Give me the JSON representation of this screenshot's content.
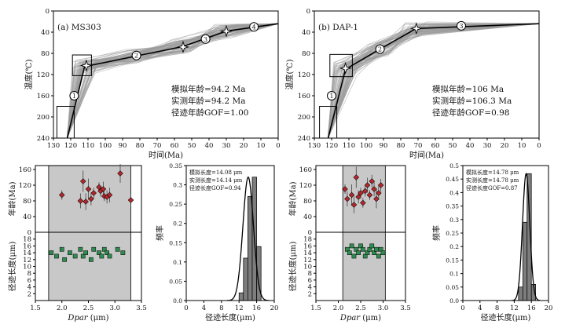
{
  "chart_data": [
    {
      "panel": "a-thermal",
      "type": "line",
      "title": "(a) MS303",
      "xlabel": "时间(Ma)",
      "ylabel": "温度(℃)",
      "xlim": [
        130,
        0
      ],
      "ylim": [
        240,
        0
      ],
      "xticks": [
        130,
        120,
        110,
        100,
        90,
        80,
        70,
        60,
        50,
        40,
        30,
        20,
        10,
        0
      ],
      "yticks": [
        0,
        40,
        80,
        120,
        160,
        200,
        240
      ],
      "path": {
        "x": [
          122,
          112,
          82,
          55,
          30,
          0
        ],
        "y": [
          240,
          105,
          85,
          67,
          38,
          24
        ]
      },
      "markers": [
        {
          "label": "1",
          "x": 118,
          "y": 160
        },
        {
          "label": "2",
          "x": 82,
          "y": 84
        },
        {
          "label": "3",
          "x": 42,
          "y": 53
        },
        {
          "label": "4",
          "x": 14,
          "y": 30
        }
      ],
      "stars": [
        {
          "x": 111,
          "y": 103
        },
        {
          "x": 55,
          "y": 68
        },
        {
          "x": 30,
          "y": 38
        }
      ],
      "constraint_boxes": [
        {
          "x": [
            128,
            118
          ],
          "y": [
            240,
            180
          ]
        },
        {
          "x": [
            119,
            108
          ],
          "y": [
            122,
            83
          ]
        }
      ],
      "annotations": [
        "模拟年龄=94.2 Ma",
        "实测年龄=94.2 Ma",
        "径迹年龄GOF=1.00"
      ]
    },
    {
      "panel": "b-thermal",
      "type": "line",
      "title": "(b) DAP-1",
      "xlabel": "时间(Ma)",
      "ylabel": "温度(℃)",
      "xlim": [
        130,
        0
      ],
      "ylim": [
        240,
        0
      ],
      "xticks": [
        130,
        120,
        110,
        100,
        90,
        80,
        70,
        60,
        50,
        40,
        30,
        20,
        10,
        0
      ],
      "yticks": [
        0,
        40,
        80,
        120,
        160,
        200,
        240
      ],
      "path": {
        "x": [
          122,
          112,
          92,
          71,
          0
        ],
        "y": [
          240,
          110,
          72,
          33,
          24
        ]
      },
      "markers": [
        {
          "label": "1",
          "x": 120,
          "y": 160
        },
        {
          "label": "2",
          "x": 92,
          "y": 72
        },
        {
          "label": "3",
          "x": 45,
          "y": 28
        }
      ],
      "stars": [
        {
          "x": 112,
          "y": 108
        },
        {
          "x": 71,
          "y": 33
        }
      ],
      "constraint_boxes": [
        {
          "x": [
            127,
            117
          ],
          "y": [
            240,
            180
          ]
        },
        {
          "x": [
            121,
            108
          ],
          "y": [
            124,
            82
          ]
        }
      ],
      "annotations": [
        "模拟年龄=106 Ma",
        "实测年龄=106.3 Ma",
        "径迹年龄GOF=0.98"
      ]
    },
    {
      "panel": "a-dpar",
      "type": "scatter",
      "xlabel": "Dpar (μm)",
      "ylabel_top": "年龄(Ma)",
      "ylabel_bottom": "径迹长度(μm)",
      "xlim": [
        1.5,
        3.5
      ],
      "xticks": [
        "1.5",
        "2.0",
        "2.5",
        "3.0",
        "3.5"
      ],
      "age_ylim": [
        0,
        170
      ],
      "age_yticks": [
        40,
        80,
        120,
        160
      ],
      "length_ylim": [
        0,
        20
      ],
      "length_yticks": [
        2,
        4,
        6,
        8,
        10,
        12,
        14,
        16,
        18
      ],
      "shaded_x": [
        1.75,
        3.3
      ],
      "age_points": {
        "x": [
          2.0,
          2.35,
          2.4,
          2.45,
          2.5,
          2.55,
          2.6,
          2.7,
          2.73,
          2.78,
          2.8,
          2.85,
          2.9,
          3.1,
          3.3
        ],
        "y": [
          95,
          80,
          130,
          78,
          110,
          85,
          100,
          115,
          105,
          110,
          92,
          90,
          95,
          150,
          82
        ]
      },
      "length_points": {
        "x": [
          1.8,
          1.9,
          2.0,
          2.05,
          2.15,
          2.25,
          2.35,
          2.4,
          2.45,
          2.55,
          2.6,
          2.7,
          2.75,
          2.8,
          2.85,
          2.9,
          3.05,
          3.15
        ],
        "y": [
          14,
          13,
          15,
          12,
          14,
          13,
          15,
          13,
          14,
          12,
          15,
          14,
          13,
          15,
          14,
          13,
          15,
          14
        ]
      }
    },
    {
      "panel": "a-hist",
      "type": "bar",
      "xlabel": "径迹长度(μm)",
      "ylabel": "频率",
      "xlim": [
        0,
        20
      ],
      "xticks": [
        0,
        4,
        8,
        12,
        16,
        20
      ],
      "ylim": [
        0,
        0.35
      ],
      "yticks": [
        0,
        0.05,
        0.1,
        0.15,
        0.2,
        0.25,
        0.3,
        0.35
      ],
      "bin_width": 1,
      "bins": [
        12,
        13,
        14,
        15,
        16
      ],
      "values": [
        0.02,
        0.11,
        0.27,
        0.32,
        0.14
      ],
      "fit": {
        "mean": 14.08,
        "sd": 1.2,
        "peak": 0.32
      },
      "annotations": [
        "模拟长度=14.08 μm",
        "实测长度=14.14 μm",
        "径迹长度GOF=0.94"
      ]
    },
    {
      "panel": "b-dpar",
      "type": "scatter",
      "xlabel": "Dpar (μm)",
      "ylabel_top": "年龄(Ma)",
      "ylabel_bottom": "径迹长度(μm)",
      "xlim": [
        1.5,
        3.5
      ],
      "xticks": [
        "1.5",
        "2.0",
        "2.5",
        "3.0",
        "3.5"
      ],
      "age_ylim": [
        0,
        170
      ],
      "age_yticks": [
        40,
        80,
        120,
        160
      ],
      "length_ylim": [
        0,
        20
      ],
      "length_yticks": [
        2,
        4,
        6,
        8,
        10,
        12,
        14,
        16,
        18
      ],
      "shaded_x": [
        2.1,
        3.05
      ],
      "age_points": {
        "x": [
          2.15,
          2.2,
          2.3,
          2.35,
          2.4,
          2.45,
          2.5,
          2.55,
          2.6,
          2.65,
          2.7,
          2.75,
          2.8,
          2.85,
          2.9,
          2.95
        ],
        "y": [
          110,
          85,
          95,
          70,
          140,
          90,
          100,
          75,
          105,
          120,
          95,
          130,
          110,
          85,
          100,
          120
        ]
      },
      "length_points": {
        "x": [
          2.2,
          2.25,
          2.3,
          2.35,
          2.4,
          2.45,
          2.5,
          2.55,
          2.6,
          2.65,
          2.7,
          2.75,
          2.8,
          2.85,
          2.9,
          2.95,
          3.0
        ],
        "y": [
          15,
          14,
          16,
          13,
          15,
          14,
          16,
          15,
          13,
          14,
          15,
          16,
          14,
          15,
          13,
          15,
          14
        ]
      }
    },
    {
      "panel": "b-hist",
      "type": "bar",
      "xlabel": "径迹长度(μm)",
      "ylabel": "频率",
      "xlim": [
        0,
        20
      ],
      "xticks": [
        0,
        4,
        8,
        12,
        16,
        20
      ],
      "ylim": [
        0,
        0.5
      ],
      "yticks": [
        0,
        0.05,
        0.1,
        0.15,
        0.2,
        0.25,
        0.3,
        0.35,
        0.4,
        0.45,
        0.5
      ],
      "bin_width": 1,
      "bins": [
        13,
        14,
        15,
        16
      ],
      "values": [
        0.05,
        0.29,
        0.47,
        0.06
      ],
      "fit": {
        "mean": 14.78,
        "sd": 0.85,
        "peak": 0.47
      },
      "annotations": [
        "模拟长度=14.78 μm",
        "实测长度=14.78 μm",
        "径迹长度GOF=0.87"
      ]
    }
  ]
}
